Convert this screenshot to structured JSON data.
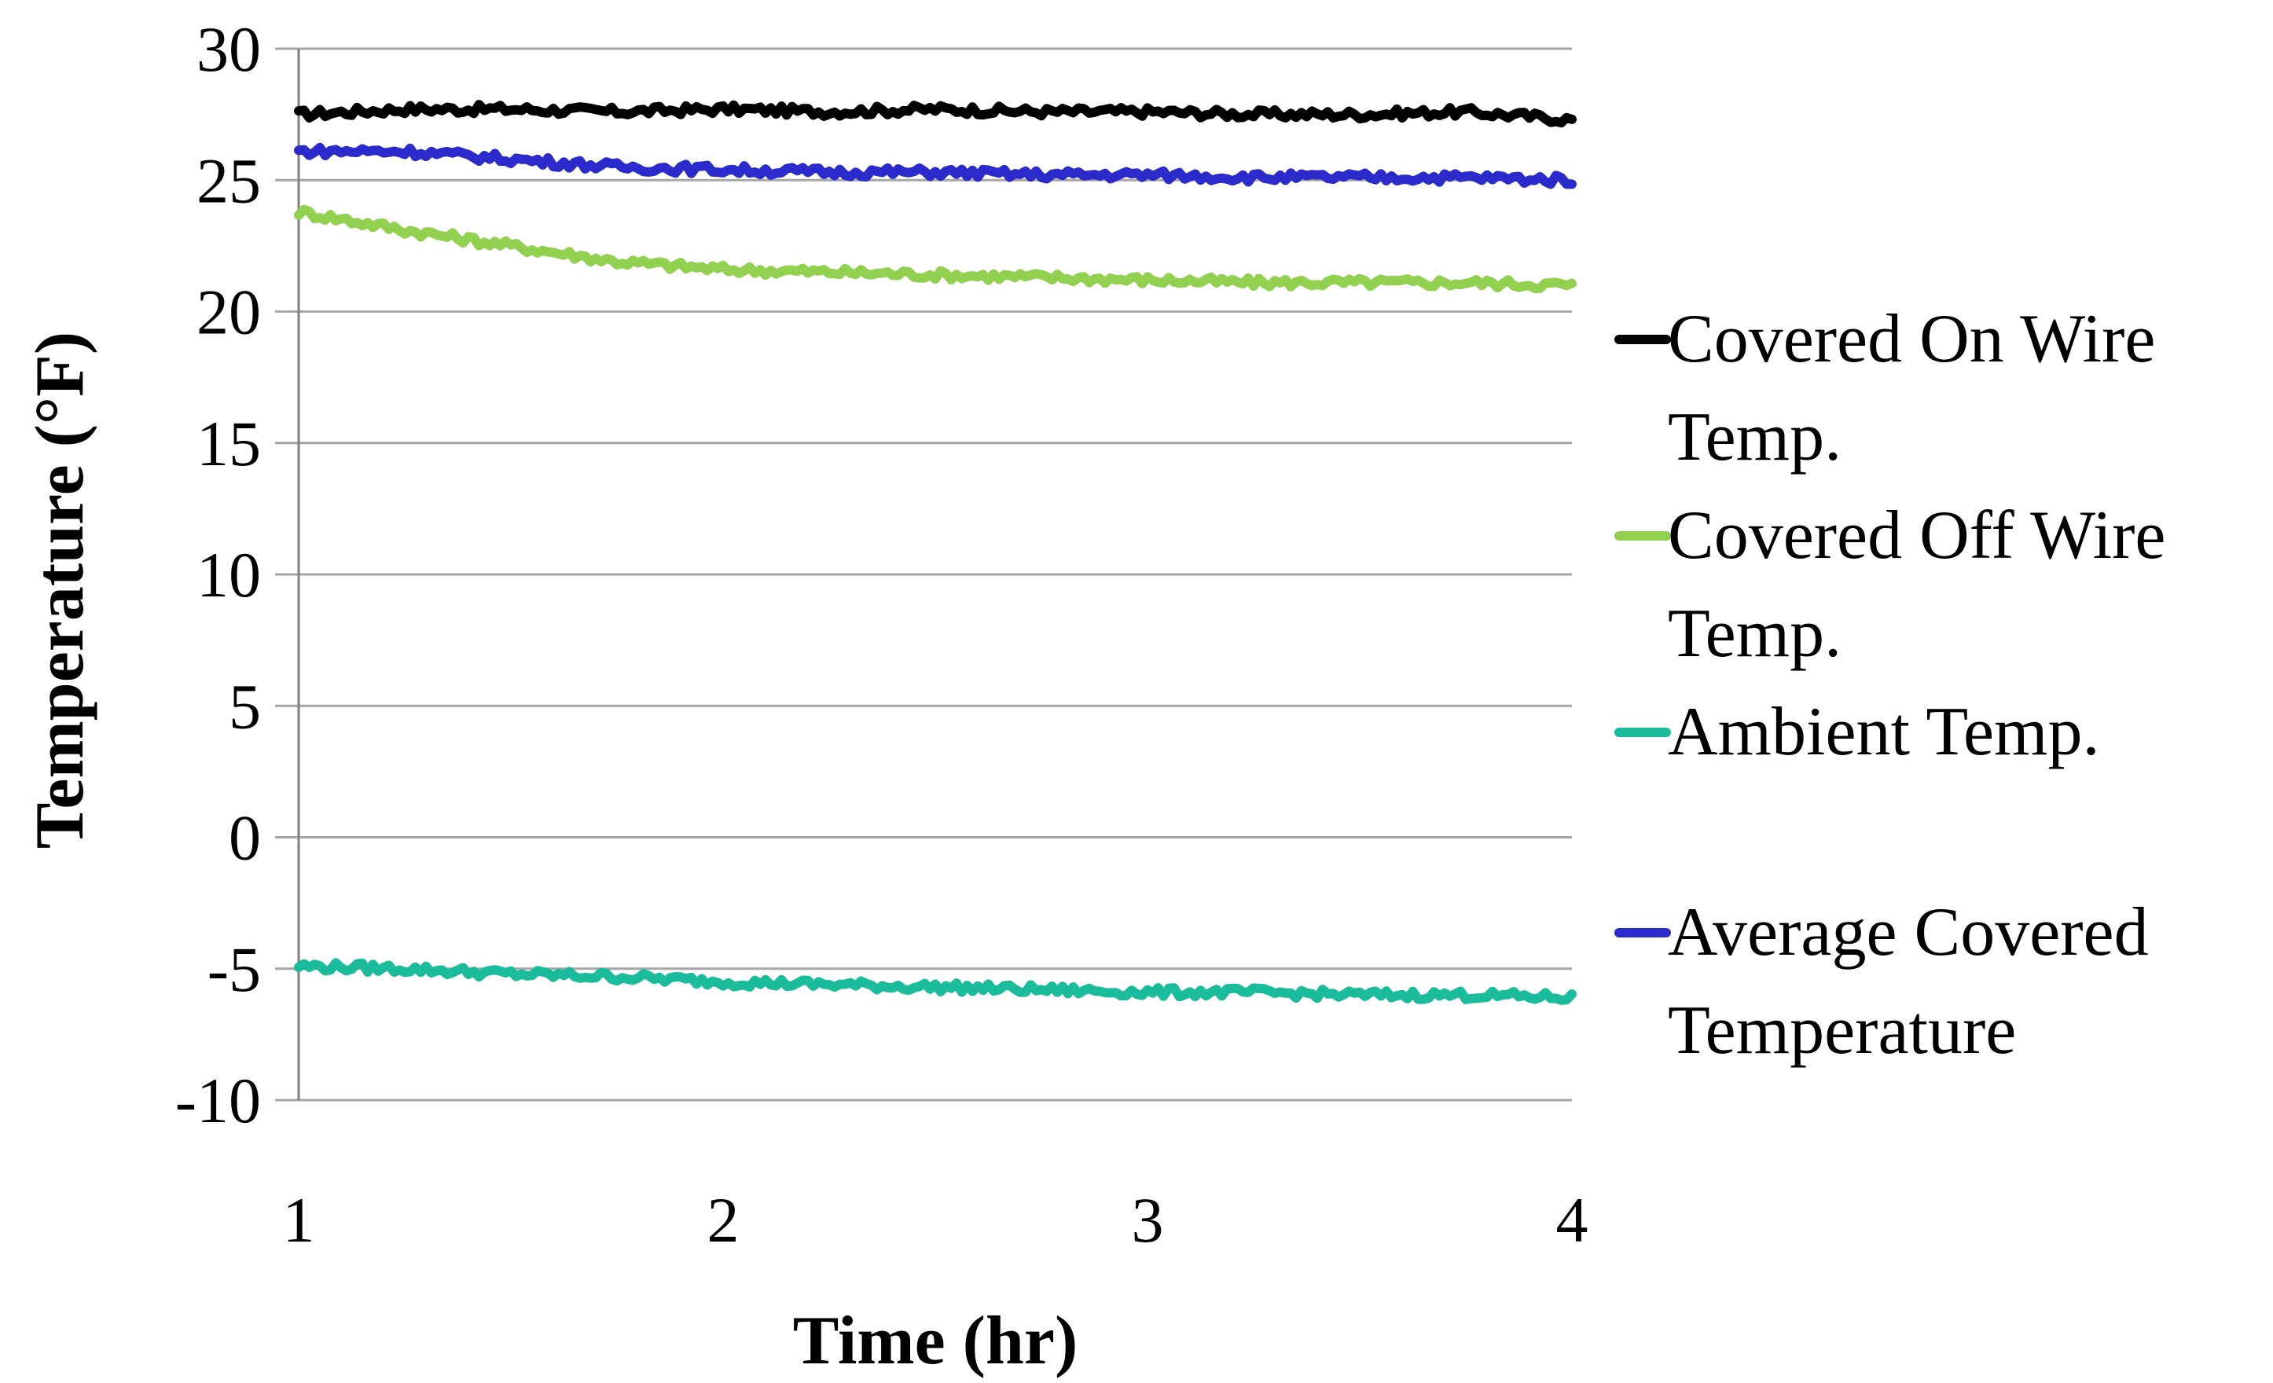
{
  "chart_data": {
    "type": "line",
    "title": "",
    "xlabel": "Time (hr)",
    "ylabel": "Temperature (°F)",
    "xlim": [
      1,
      4
    ],
    "ylim": [
      -10,
      30
    ],
    "x_ticks": [
      "1",
      "2",
      "3",
      "4"
    ],
    "y_ticks": [
      "30",
      "25",
      "20",
      "15",
      "10",
      "5",
      "0",
      "-5",
      "-10"
    ],
    "grid": "horizontal",
    "legend_position": "right",
    "x": [
      1.0,
      1.25,
      1.5,
      1.75,
      2.0,
      2.25,
      2.5,
      2.75,
      3.0,
      3.25,
      3.5,
      3.75,
      4.0
    ],
    "series": [
      {
        "name": "Covered On Wire Temp.",
        "color": "#000000",
        "values": [
          27.5,
          27.7,
          27.7,
          27.6,
          27.7,
          27.6,
          27.7,
          27.6,
          27.6,
          27.5,
          27.5,
          27.6,
          27.3
        ]
      },
      {
        "name": "Covered Off Wire Temp.",
        "color": "#92d050",
        "values": [
          23.8,
          23.1,
          22.5,
          21.9,
          21.6,
          21.5,
          21.4,
          21.3,
          21.2,
          21.1,
          21.1,
          21.1,
          21.0
        ]
      },
      {
        "name": "Ambient Temp.",
        "color": "#1abc9c",
        "values": [
          -4.9,
          -5.0,
          -5.2,
          -5.3,
          -5.5,
          -5.6,
          -5.7,
          -5.8,
          -5.9,
          -5.9,
          -6.0,
          -6.0,
          -6.1
        ]
      },
      {
        "name": "Average Covered Temperature",
        "color": "#2b2bcc",
        "values": [
          26.1,
          26.1,
          25.8,
          25.5,
          25.4,
          25.3,
          25.3,
          25.2,
          25.2,
          25.1,
          25.1,
          25.1,
          25.0
        ]
      }
    ],
    "legend": [
      {
        "line1": "Covered On Wire",
        "line2": "Temp."
      },
      {
        "line1": "Covered Off Wire",
        "line2": "Temp."
      },
      {
        "line1": "Ambient  Temp.",
        "line2": ""
      },
      {
        "line1": "Average Covered",
        "line2": "Temperature"
      }
    ]
  }
}
